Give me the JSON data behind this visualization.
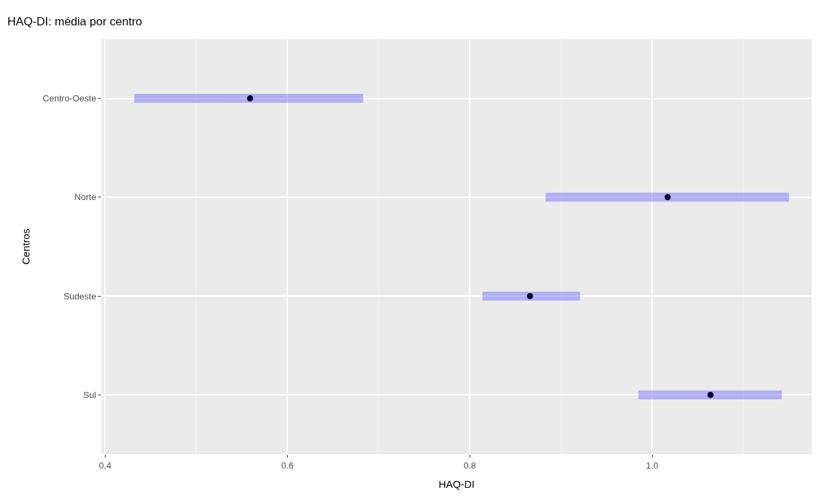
{
  "chart_data": {
    "type": "scatter",
    "orientation": "horizontal",
    "title": "HAQ-DI: média por centro",
    "xlabel": "HAQ-DI",
    "ylabel": "Centros",
    "categories": [
      "Centro-Oeste",
      "Norte",
      "Sudeste",
      "Sul"
    ],
    "series": [
      {
        "color": "#000033",
        "values": [
          0.559,
          1.017,
          0.866,
          1.064
        ],
        "errors": [
          [
            0.432,
            0.683
          ],
          [
            0.883,
            1.15
          ],
          [
            0.814,
            0.921
          ],
          [
            0.985,
            1.142
          ]
        ]
      }
    ],
    "xlim": [
      0.396,
      1.175
    ],
    "xticks": [
      0.4,
      {
        "value": 0.5,
        "label": null
      },
      0.6,
      {
        "value": 0.7,
        "label": null
      },
      0.8,
      {
        "value": 0.9,
        "label": null
      },
      "1.0",
      {
        "value": 1.1,
        "label": null
      }
    ],
    "marker": "circle",
    "grid": true,
    "legend": false
  }
}
